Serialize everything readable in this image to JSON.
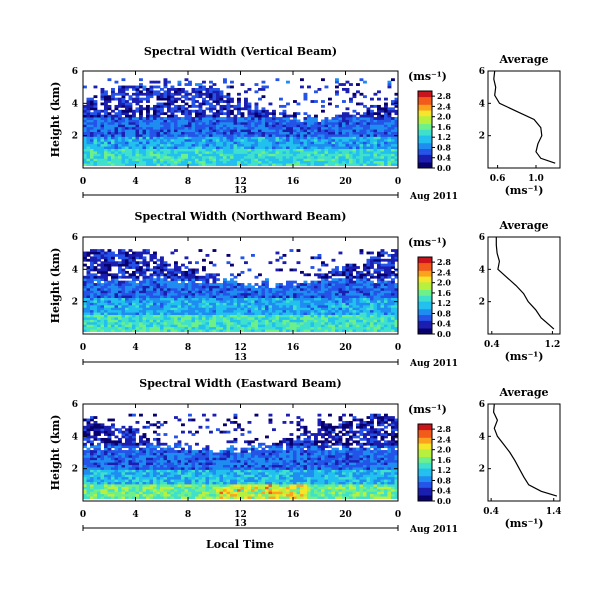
{
  "figure": {
    "xlabel_common": "Local Time",
    "date_suffix": "Aug 2011",
    "colorbar_unit": "(ms⁻¹)",
    "avg_title": "Average",
    "avg_xlabel": "(ms⁻¹)"
  },
  "colors": {
    "colormap": [
      "#08006b",
      "#1b1fb0",
      "#2453e8",
      "#1e8cf0",
      "#22c0ee",
      "#3fe0cc",
      "#6df08a",
      "#b8f040",
      "#f5e62a",
      "#fba21e",
      "#f25a1a",
      "#c8141a"
    ]
  },
  "chart_data": [
    {
      "type": "heatmap",
      "title": "Spectral Width (Vertical Beam)",
      "ylabel": "Height (km)",
      "x_ticks": [
        "0",
        "4",
        "8",
        "12",
        "16",
        "20",
        "0"
      ],
      "y_ticks": [
        "2",
        "4",
        "6"
      ],
      "date_tick": "13",
      "xlim": [
        0,
        24
      ],
      "ylim": [
        0,
        6
      ],
      "colorbar": {
        "ticks": [
          "0.0",
          "0.4",
          "0.8",
          "1.2",
          "1.6",
          "2.0",
          "2.4",
          "2.8"
        ],
        "range": [
          0,
          3.0
        ]
      },
      "regions": [
        {
          "x_range": [
            0,
            24
          ],
          "z_range": [
            0.2,
            1.2
          ],
          "value": 1.3
        },
        {
          "x_range": [
            0,
            24
          ],
          "z_range": [
            1.2,
            2.0
          ],
          "value": 1.0
        },
        {
          "x_range": [
            0,
            24
          ],
          "z_range": [
            2.0,
            3.2
          ],
          "value": 0.7
        },
        {
          "x_range": [
            0,
            24
          ],
          "z_range": [
            3.2,
            5.0
          ],
          "value": 0.4
        },
        {
          "x_range": [
            0,
            24
          ],
          "z_range": [
            5.0,
            5.6
          ],
          "value": 0.5
        }
      ],
      "average_profile": {
        "title": "Average",
        "xticks": [
          "0.6",
          "1.0"
        ],
        "yticks": [
          "2",
          "4",
          "6"
        ],
        "xlim": [
          0.5,
          1.25
        ],
        "height_km": [
          0.3,
          0.6,
          1.0,
          1.5,
          2.0,
          2.5,
          3.0,
          3.5,
          4.0,
          4.5,
          5.0,
          5.5,
          6.0
        ],
        "width_ms": [
          1.2,
          1.05,
          1.0,
          1.02,
          1.06,
          1.05,
          0.98,
          0.8,
          0.62,
          0.57,
          0.58,
          0.56,
          0.57
        ]
      }
    },
    {
      "type": "heatmap",
      "title": "Spectral Width (Northward Beam)",
      "ylabel": "Height (km)",
      "x_ticks": [
        "0",
        "4",
        "8",
        "12",
        "16",
        "20",
        "0"
      ],
      "y_ticks": [
        "2",
        "4",
        "6"
      ],
      "date_tick": "13",
      "xlim": [
        0,
        24
      ],
      "ylim": [
        0,
        6
      ],
      "colorbar": {
        "ticks": [
          "0.0",
          "0.4",
          "0.8",
          "1.2",
          "1.6",
          "2.0",
          "2.4",
          "2.8"
        ],
        "range": [
          0,
          3.0
        ]
      },
      "regions": [
        {
          "x_range": [
            0,
            24
          ],
          "z_range": [
            0.2,
            1.2
          ],
          "value": 1.4
        },
        {
          "x_range": [
            0,
            24
          ],
          "z_range": [
            1.2,
            2.2
          ],
          "value": 1.0
        },
        {
          "x_range": [
            0,
            24
          ],
          "z_range": [
            2.2,
            3.4
          ],
          "value": 0.7
        },
        {
          "x_range": [
            0,
            24
          ],
          "z_range": [
            3.4,
            5.2
          ],
          "value": 0.4
        }
      ],
      "average_profile": {
        "title": "Average",
        "xticks": [
          "0.4",
          "1.2"
        ],
        "yticks": [
          "2",
          "4",
          "6"
        ],
        "xlim": [
          0.35,
          1.3
        ],
        "height_km": [
          0.3,
          0.6,
          1.0,
          1.5,
          2.0,
          2.5,
          3.0,
          3.5,
          4.0,
          4.5,
          5.0,
          5.5,
          6.0
        ],
        "width_ms": [
          1.22,
          1.15,
          1.05,
          0.98,
          0.88,
          0.82,
          0.72,
          0.6,
          0.48,
          0.5,
          0.47,
          0.46,
          0.46
        ]
      }
    },
    {
      "type": "heatmap",
      "title": "Spectral Width (Eastward Beam)",
      "ylabel": "Height (km)",
      "x_ticks": [
        "0",
        "4",
        "8",
        "12",
        "16",
        "20",
        "0"
      ],
      "y_ticks": [
        "2",
        "4",
        "6"
      ],
      "date_tick": "13",
      "xlim": [
        0,
        24
      ],
      "ylim": [
        0,
        6
      ],
      "colorbar": {
        "ticks": [
          "0.0",
          "0.4",
          "0.8",
          "1.2",
          "1.6",
          "2.0",
          "2.4",
          "2.8"
        ],
        "range": [
          0,
          3.0
        ]
      },
      "regions": [
        {
          "x_range": [
            0,
            24
          ],
          "z_range": [
            0.2,
            1.0
          ],
          "value": 1.6
        },
        {
          "x_range": [
            0,
            24
          ],
          "z_range": [
            1.0,
            2.0
          ],
          "value": 1.1
        },
        {
          "x_range": [
            0,
            24
          ],
          "z_range": [
            2.0,
            3.4
          ],
          "value": 0.7
        },
        {
          "x_range": [
            0,
            24
          ],
          "z_range": [
            3.4,
            5.4
          ],
          "value": 0.35
        }
      ],
      "average_profile": {
        "title": "Average",
        "xticks": [
          "0.4",
          "1.4"
        ],
        "yticks": [
          "2",
          "4",
          "6"
        ],
        "xlim": [
          0.35,
          1.5
        ],
        "height_km": [
          0.3,
          0.6,
          1.0,
          1.5,
          2.0,
          2.5,
          3.0,
          3.5,
          4.0,
          4.5,
          5.0,
          5.5,
          6.0
        ],
        "width_ms": [
          1.45,
          1.2,
          1.0,
          0.92,
          0.85,
          0.78,
          0.7,
          0.6,
          0.5,
          0.45,
          0.5,
          0.44,
          0.45
        ]
      }
    }
  ]
}
